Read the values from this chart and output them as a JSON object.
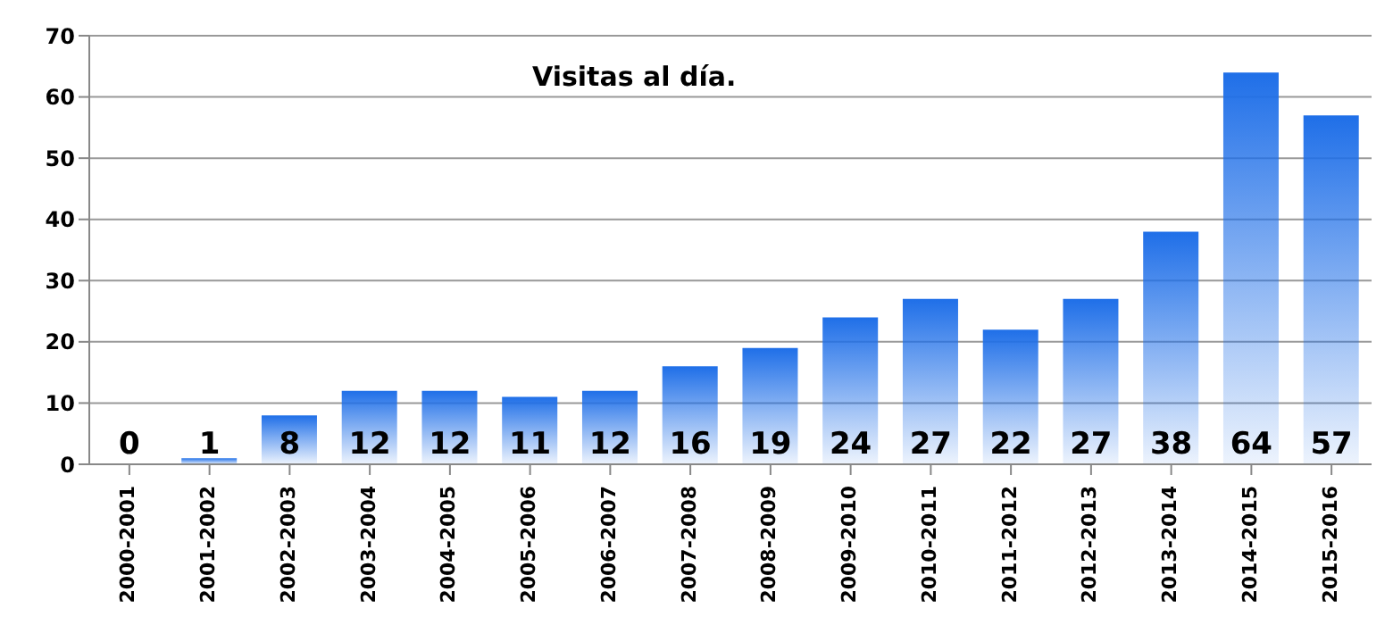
{
  "chart_data": {
    "type": "bar",
    "title": "Visitas al día.",
    "categories": [
      "2000-2001",
      "2001-2002",
      "2002-2003",
      "2003-2004",
      "2004-2005",
      "2005-2006",
      "2006-2007",
      "2007-2008",
      "2008-2009",
      "2009-2010",
      "2010-2011",
      "2011-2012",
      "2012-2013",
      "2013-2014",
      "2014-2015",
      "2015-2016"
    ],
    "values": [
      0,
      1,
      8,
      12,
      12,
      11,
      12,
      16,
      19,
      24,
      27,
      22,
      27,
      38,
      64,
      57
    ],
    "color": "#1f6fe8",
    "ylim": [
      0,
      70
    ],
    "yticks": [
      0,
      10,
      20,
      30,
      40,
      50,
      60,
      70
    ],
    "grid": "y",
    "data_labels": true
  }
}
